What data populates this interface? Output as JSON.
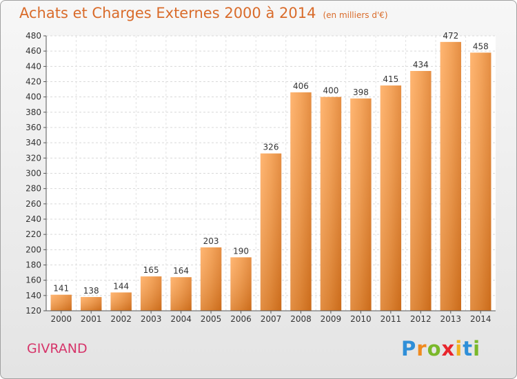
{
  "chart_data": {
    "type": "bar",
    "title": "Achats et Charges Externes 2000 à 2014",
    "subtitle": "(en milliers d'€)",
    "categories": [
      "2000",
      "2001",
      "2002",
      "2003",
      "2004",
      "2005",
      "2006",
      "2007",
      "2008",
      "2009",
      "2010",
      "2011",
      "2012",
      "2013",
      "2014"
    ],
    "values": [
      141,
      138,
      144,
      165,
      164,
      203,
      190,
      326,
      406,
      400,
      398,
      415,
      434,
      472,
      458
    ],
    "ylim": [
      120,
      480
    ],
    "yticks": [
      120,
      140,
      160,
      180,
      200,
      220,
      240,
      260,
      280,
      300,
      320,
      340,
      360,
      380,
      400,
      420,
      440,
      460,
      480
    ],
    "grid": true,
    "bar_color": "#f0913a"
  },
  "footer": {
    "place": "GIVRAND",
    "logo_letters": [
      "P",
      "r",
      "o",
      "x",
      "i",
      "t",
      "i"
    ],
    "logo_colors": [
      "#2f8fd8",
      "#f08a1f",
      "#7ab82a",
      "#e8262d",
      "#f0b21f",
      "#2f8fd8",
      "#7ab82a"
    ]
  }
}
